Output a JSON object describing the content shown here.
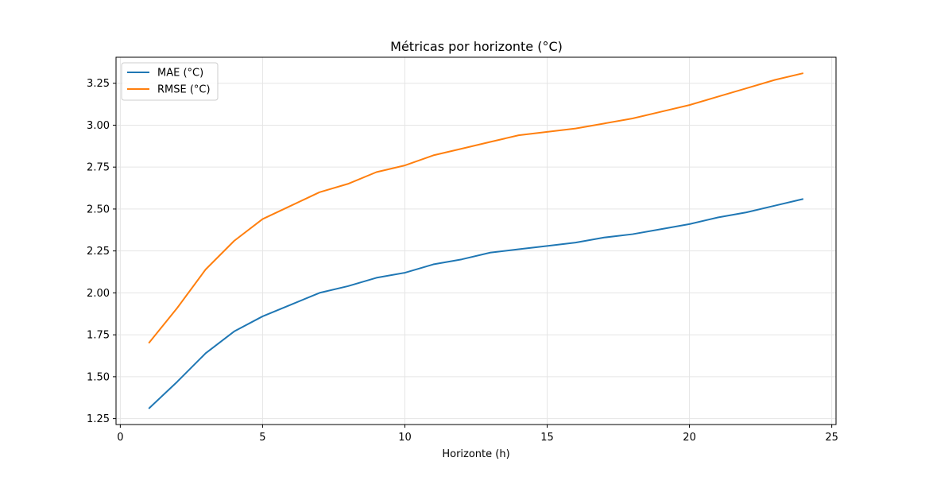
{
  "chart_data": {
    "type": "line",
    "title": "Métricas por horizonte (°C)",
    "xlabel": "Horizonte (h)",
    "ylabel": "",
    "xlim": [
      -0.15,
      25.15
    ],
    "ylim": [
      1.215,
      3.405
    ],
    "xticks": [
      0,
      5,
      10,
      15,
      20,
      25
    ],
    "yticks": [
      1.25,
      1.5,
      1.75,
      2.0,
      2.25,
      2.5,
      2.75,
      3.0,
      3.25
    ],
    "xtick_labels": [
      "0",
      "5",
      "10",
      "15",
      "20",
      "25"
    ],
    "ytick_labels": [
      "1.25",
      "1.50",
      "1.75",
      "2.00",
      "2.25",
      "2.50",
      "2.75",
      "3.00",
      "3.25"
    ],
    "grid": true,
    "legend_position": "top-left",
    "x": [
      1,
      2,
      3,
      4,
      5,
      6,
      7,
      8,
      9,
      10,
      11,
      12,
      13,
      14,
      15,
      16,
      17,
      18,
      19,
      20,
      21,
      22,
      23,
      24
    ],
    "series": [
      {
        "name": "MAE (°C)",
        "color": "#1f77b4",
        "values": [
          1.31,
          1.47,
          1.64,
          1.77,
          1.86,
          1.93,
          2.0,
          2.04,
          2.09,
          2.12,
          2.17,
          2.2,
          2.24,
          2.26,
          2.28,
          2.3,
          2.33,
          2.35,
          2.38,
          2.41,
          2.45,
          2.48,
          2.52,
          2.56
        ]
      },
      {
        "name": "RMSE (°C)",
        "color": "#ff7f0e",
        "values": [
          1.7,
          1.91,
          2.14,
          2.31,
          2.44,
          2.52,
          2.6,
          2.65,
          2.72,
          2.76,
          2.82,
          2.86,
          2.9,
          2.94,
          2.96,
          2.98,
          3.01,
          3.04,
          3.08,
          3.12,
          3.17,
          3.22,
          3.27,
          3.31
        ]
      }
    ]
  }
}
